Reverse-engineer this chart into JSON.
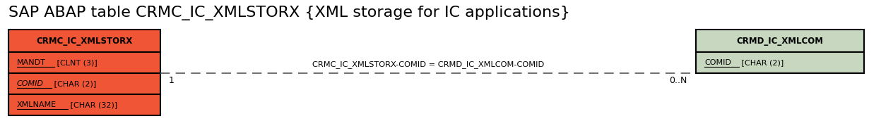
{
  "title": "SAP ABAP table CRMC_IC_XMLSTORX {XML storage for IC applications}",
  "title_fontsize": 16,
  "left_table": {
    "name": "CRMC_IC_XMLSTORX",
    "header_color": "#f05535",
    "row_color": "#f05535",
    "border_color": "#000000",
    "fields": [
      {
        "text": "MANDT [CLNT (3)]",
        "underline": "MANDT",
        "italic": false
      },
      {
        "text": "COMID [CHAR (2)]",
        "underline": "COMID",
        "italic": true
      },
      {
        "text": "XMLNAME [CHAR (32)]",
        "underline": "XMLNAME",
        "italic": false
      }
    ]
  },
  "right_table": {
    "name": "CRMD_IC_XMLCOM",
    "header_color": "#c8d8c0",
    "row_color": "#c8d8c0",
    "border_color": "#000000",
    "fields": [
      {
        "text": "COMID [CHAR (2)]",
        "underline": "COMID",
        "italic": false
      }
    ]
  },
  "relation_label": "CRMC_IC_XMLSTORX-COMID = CRMD_IC_XMLCOM-COMID",
  "left_cardinality": "1",
  "right_cardinality": "0..N",
  "background_color": "#ffffff"
}
